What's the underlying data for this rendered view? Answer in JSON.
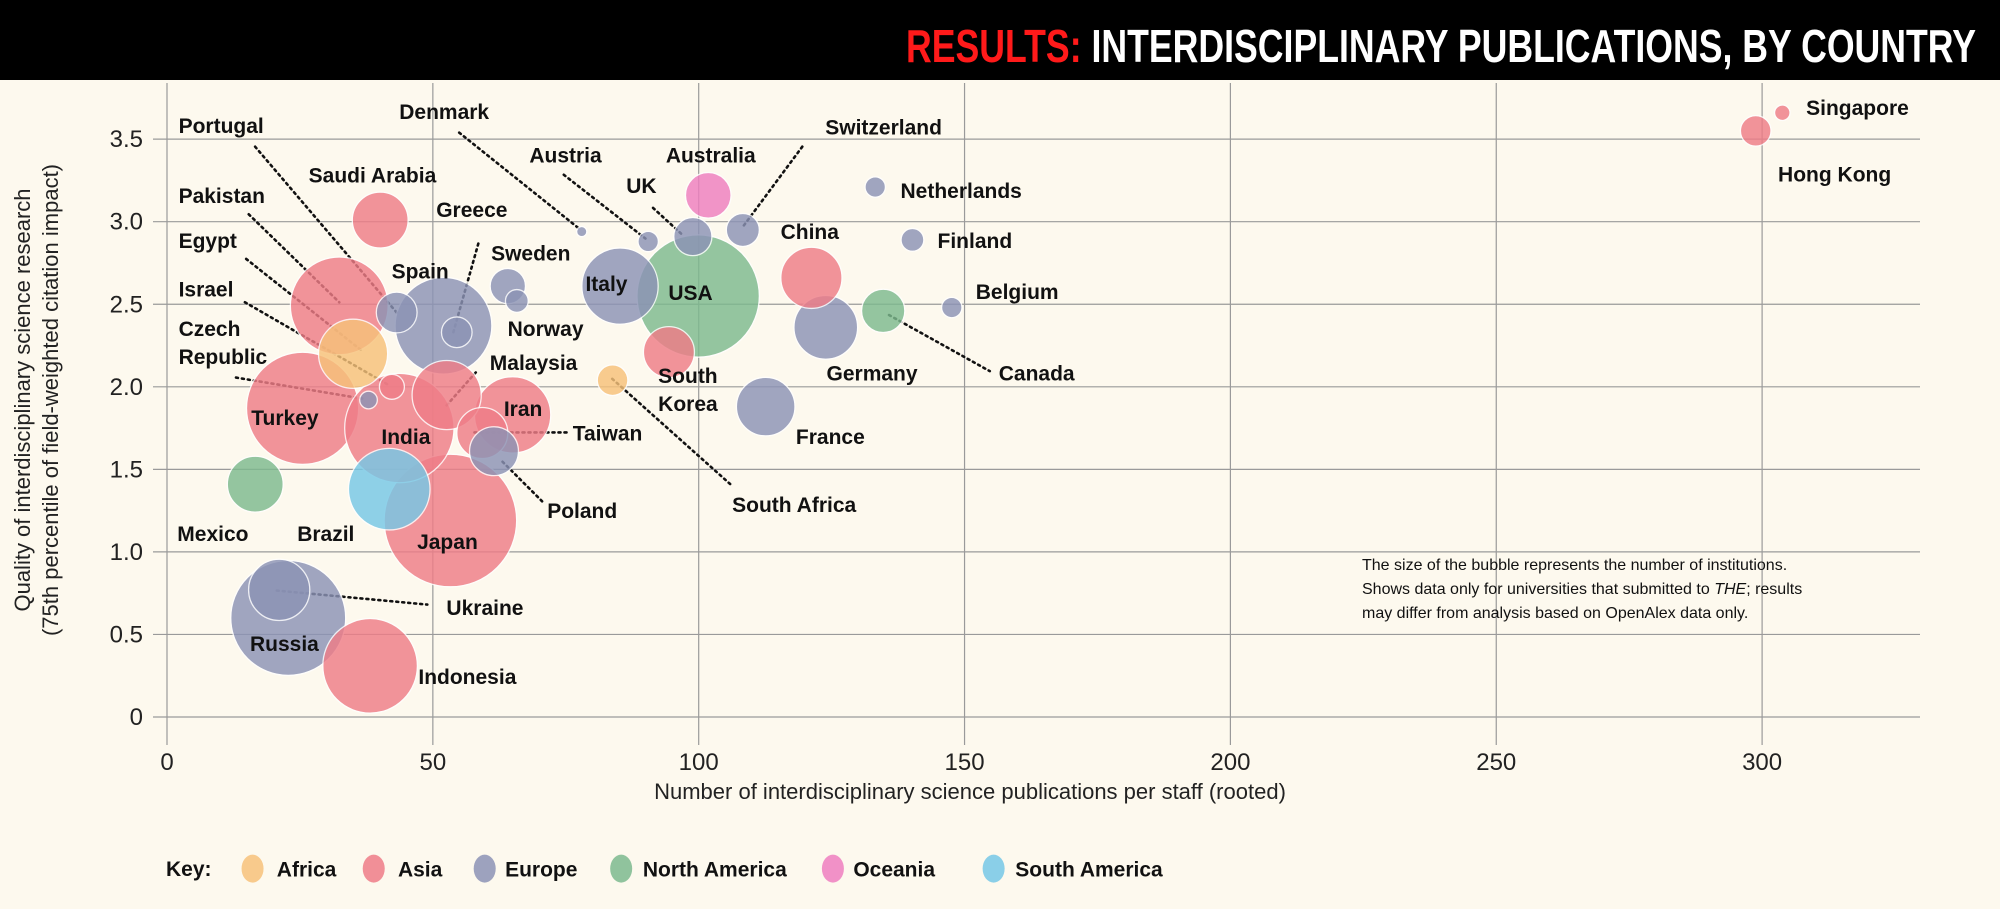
{
  "header": {
    "title_accent": "RESULTS:",
    "title_rest": " INTERDISCIPLINARY PUBLICATIONS, BY COUNTRY"
  },
  "note": {
    "line1": "The size of the bubble represents the number of institutions.",
    "line2_a": "Shows data only for universities that submitted to ",
    "line2_em": "THE",
    "line2_b": "; results",
    "line3": "may differ from analysis based on OpenAlex data only."
  },
  "chart_data": {
    "type": "scatter",
    "title": "RESULTS: INTERDISCIPLINARY PUBLICATIONS, BY COUNTRY",
    "xlabel": "Number of interdisciplinary science publications per staff (rooted)",
    "ylabel_line1": "Quality of interdisciplinary science research",
    "ylabel_line2": "(75th percentile of field-weighted citation impact)",
    "xlim": [
      0,
      330
    ],
    "ylim": [
      0,
      3.8
    ],
    "x_ticks": [
      "0",
      "50",
      "100",
      "150",
      "200",
      "250",
      "300"
    ],
    "y_ticks": [
      "0",
      "0.5",
      "1.0",
      "1.5",
      "2.0",
      "2.5",
      "3.0",
      "3.5"
    ],
    "grid": true,
    "size_meaning": "number of institutions (relative)",
    "legend": {
      "title": "Key:",
      "placement": "bottom",
      "items": [
        {
          "name": "Africa",
          "color": "#f7c27a"
        },
        {
          "name": "Asia",
          "color": "#ef7d87"
        },
        {
          "name": "Europe",
          "color": "#8c93b5"
        },
        {
          "name": "North America",
          "color": "#7dba8e"
        },
        {
          "name": "Oceania",
          "color": "#ef7fbf"
        },
        {
          "name": "South America",
          "color": "#76c8e6"
        }
      ]
    },
    "points": [
      {
        "name": "Japan",
        "region": "Asia",
        "x": 53.3,
        "y": 1.19,
        "size": 169
      },
      {
        "name": "USA",
        "region": "North America",
        "x": 99.9,
        "y": 2.55,
        "size": 144
      },
      {
        "name": "Russia",
        "region": "Europe",
        "x": 22.8,
        "y": 0.6,
        "size": 127
      },
      {
        "name": "Turkey",
        "region": "Asia",
        "x": 25.5,
        "y": 1.87,
        "size": 121
      },
      {
        "name": "India",
        "region": "Asia",
        "x": 43.7,
        "y": 1.75,
        "size": 115
      },
      {
        "name": "Spain",
        "region": "Europe",
        "x": 52.0,
        "y": 2.37,
        "size": 90
      },
      {
        "name": "Pakistan",
        "region": "Asia",
        "x": 32.4,
        "y": 2.49,
        "size": 92
      },
      {
        "name": "Indonesia",
        "region": "Asia",
        "x": 38.2,
        "y": 0.31,
        "size": 86
      },
      {
        "name": "Brazil",
        "region": "South America",
        "x": 41.8,
        "y": 1.38,
        "size": 64
      },
      {
        "name": "Italy",
        "region": "Europe",
        "x": 85.2,
        "y": 2.61,
        "size": 56
      },
      {
        "name": "Egypt",
        "region": "Africa",
        "x": 35.0,
        "y": 2.2,
        "size": 46
      },
      {
        "name": "Iran",
        "region": "Asia",
        "x": 65.0,
        "y": 1.83,
        "size": 56
      },
      {
        "name": "Malaysia",
        "region": "Asia",
        "x": 52.6,
        "y": 1.95,
        "size": 46
      },
      {
        "name": "Germany",
        "region": "Europe",
        "x": 123.9,
        "y": 2.36,
        "size": 39
      },
      {
        "name": "China",
        "region": "Asia",
        "x": 121.2,
        "y": 2.66,
        "size": 36
      },
      {
        "name": "France",
        "region": "Europe",
        "x": 112.6,
        "y": 1.88,
        "size": 33
      },
      {
        "name": "Saudi Arabia",
        "region": "Asia",
        "x": 40.1,
        "y": 3.01,
        "size": 30
      },
      {
        "name": "Ukraine",
        "region": "Europe",
        "x": 21.1,
        "y": 0.77,
        "size": 36
      },
      {
        "name": "Mexico",
        "region": "North America",
        "x": 16.6,
        "y": 1.41,
        "size": 30
      },
      {
        "name": "South Korea",
        "region": "Asia",
        "x": 94.4,
        "y": 2.21,
        "size": 25
      },
      {
        "name": "Taiwan",
        "region": "Asia",
        "x": 59.3,
        "y": 1.72,
        "size": 25
      },
      {
        "name": "Poland",
        "region": "Europe",
        "x": 61.5,
        "y": 1.61,
        "size": 23
      },
      {
        "name": "Australia",
        "region": "Oceania",
        "x": 101.8,
        "y": 3.16,
        "size": 20
      },
      {
        "name": "Canada",
        "region": "North America",
        "x": 134.7,
        "y": 2.46,
        "size": 18
      },
      {
        "name": "Portugal",
        "region": "Europe",
        "x": 43.2,
        "y": 2.45,
        "size": 16
      },
      {
        "name": "UK",
        "region": "Europe",
        "x": 98.9,
        "y": 2.91,
        "size": 14
      },
      {
        "name": "Sweden",
        "region": "Europe",
        "x": 64.1,
        "y": 2.61,
        "size": 12
      },
      {
        "name": "Switzerland",
        "region": "Europe",
        "x": 108.3,
        "y": 2.95,
        "size": 10.5
      },
      {
        "name": "Greece",
        "region": "Europe",
        "x": 54.5,
        "y": 2.33,
        "size": 9
      },
      {
        "name": "South Africa",
        "region": "Africa",
        "x": 83.8,
        "y": 2.04,
        "size": 9
      },
      {
        "name": "Hong Kong",
        "region": "Asia",
        "x": 298.8,
        "y": 3.55,
        "size": 9
      },
      {
        "name": "Israel",
        "region": "Asia",
        "x": 42.3,
        "y": 2.0,
        "size": 6
      },
      {
        "name": "Finland",
        "region": "Europe",
        "x": 140.2,
        "y": 2.89,
        "size": 5
      },
      {
        "name": "Norway",
        "region": "Europe",
        "x": 65.8,
        "y": 2.52,
        "size": 5
      },
      {
        "name": "Netherlands",
        "region": "Europe",
        "x": 133.2,
        "y": 3.21,
        "size": 4
      },
      {
        "name": "Belgium",
        "region": "Europe",
        "x": 147.6,
        "y": 2.48,
        "size": 4
      },
      {
        "name": "Austria",
        "region": "Europe",
        "x": 90.5,
        "y": 2.88,
        "size": 4
      },
      {
        "name": "Czech Republic",
        "region": "Europe",
        "x": 37.9,
        "y": 1.92,
        "size": 3
      },
      {
        "name": "Singapore",
        "region": "Asia",
        "x": 303.8,
        "y": 3.66,
        "size": 2.3
      },
      {
        "name": "Denmark",
        "region": "Europe",
        "x": 78.0,
        "y": 2.94,
        "size": 1
      }
    ]
  }
}
